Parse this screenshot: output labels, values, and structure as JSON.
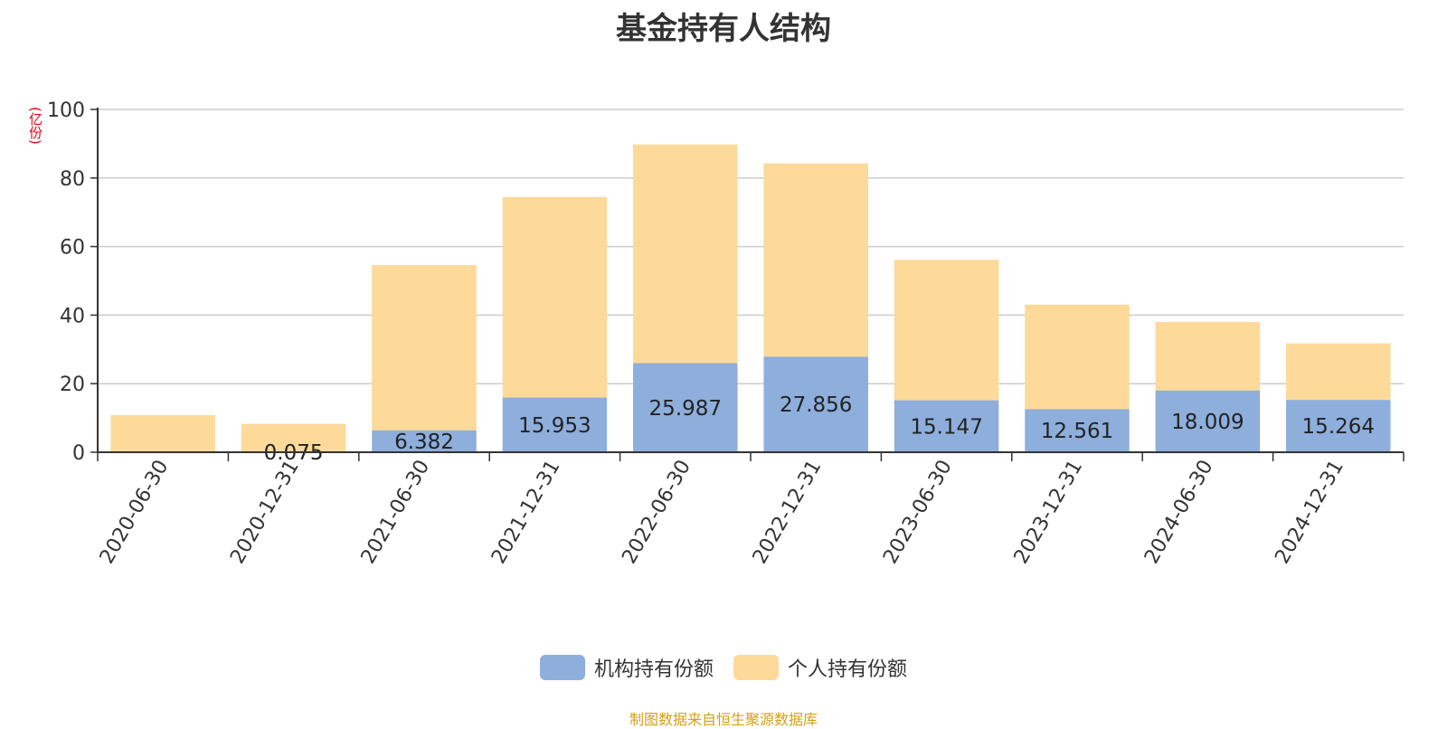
{
  "chart_data": {
    "type": "bar",
    "stacked": true,
    "title": "基金持有人结构",
    "ylabel": "(亿份)",
    "ylim": [
      0,
      100
    ],
    "yticks": [
      0,
      20,
      40,
      60,
      80,
      100
    ],
    "grid": true,
    "legend_position": "bottom",
    "categories": [
      "2020-06-30",
      "2020-12-31",
      "2021-06-30",
      "2021-12-31",
      "2022-06-30",
      "2022-12-31",
      "2023-06-30",
      "2023-12-31",
      "2024-06-30",
      "2024-12-31"
    ],
    "series": [
      {
        "name": "机构持有份额",
        "color": "#8eaedc",
        "values": [
          0,
          0.075,
          6.382,
          15.953,
          25.987,
          27.856,
          15.147,
          12.561,
          18.009,
          15.264
        ],
        "labels": [
          "",
          "0.075",
          "6.382",
          "15.953",
          "25.987",
          "27.856",
          "15.147",
          "12.561",
          "18.009",
          "15.264"
        ]
      },
      {
        "name": "个人持有份额",
        "color": "#fdd99a",
        "values": [
          10.8,
          8.2,
          48.2,
          58.5,
          63.8,
          56.4,
          41.0,
          30.5,
          20.0,
          16.5
        ]
      }
    ]
  },
  "source_note": "制图数据来自恒生聚源数据库"
}
